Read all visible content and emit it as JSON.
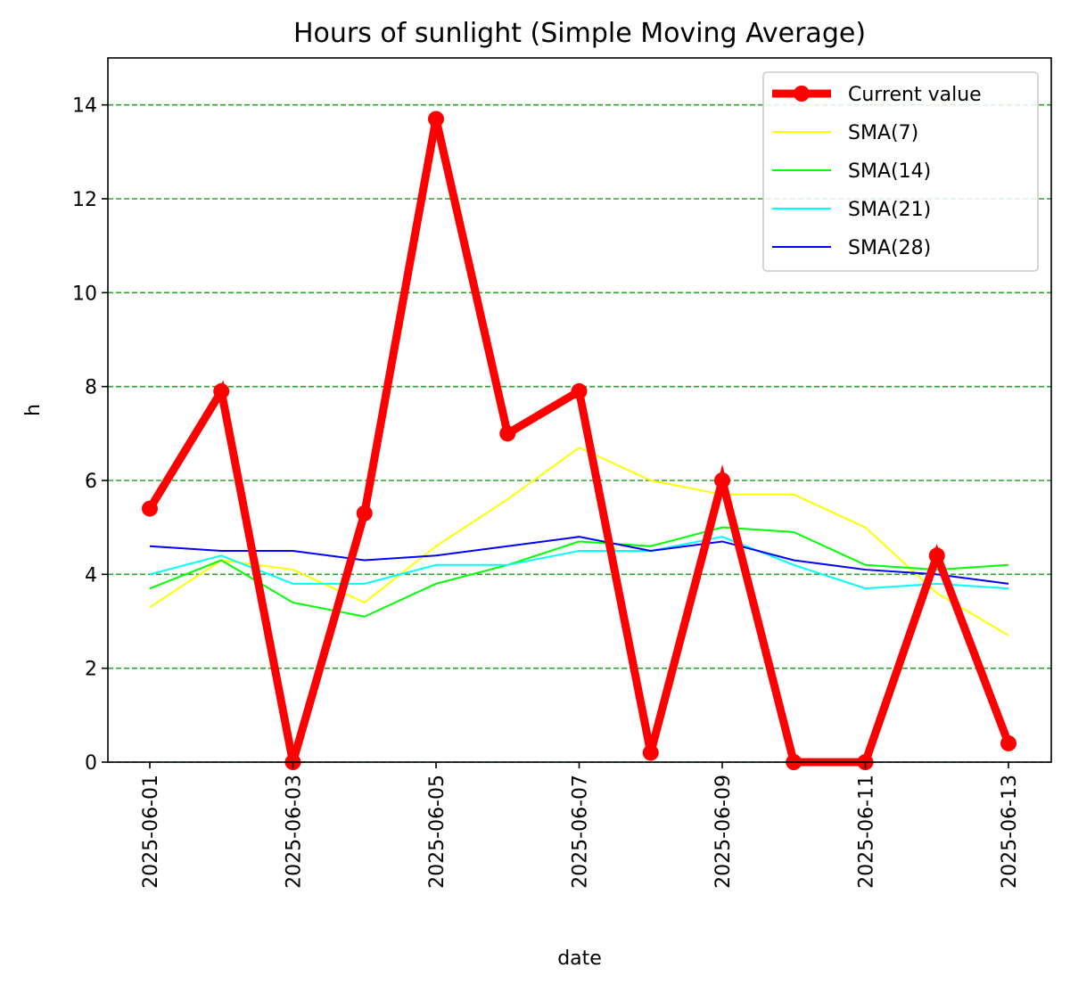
{
  "chart_data": {
    "type": "line",
    "title": "Hours of sunlight (Simple Moving Average)",
    "xlabel": "date",
    "ylabel": "h",
    "x": [
      "2025-06-01",
      "2025-06-02",
      "2025-06-03",
      "2025-06-04",
      "2025-06-05",
      "2025-06-06",
      "2025-06-07",
      "2025-06-08",
      "2025-06-09",
      "2025-06-10",
      "2025-06-11",
      "2025-06-12",
      "2025-06-13"
    ],
    "x_ticks": [
      "2025-06-01",
      "2025-06-03",
      "2025-06-05",
      "2025-06-07",
      "2025-06-09",
      "2025-06-11",
      "2025-06-13"
    ],
    "ylim": [
      0,
      15
    ],
    "y_ticks": [
      "0",
      "2",
      "4",
      "6",
      "8",
      "10",
      "12",
      "14"
    ],
    "grid": "horizontal, dashed",
    "legend_position": "top-right",
    "series": [
      {
        "name": "Current value",
        "color": "#ff0000",
        "markers": true,
        "values": [
          5.4,
          7.9,
          0.0,
          5.3,
          13.7,
          7.0,
          7.9,
          0.2,
          6.0,
          0.0,
          0.0,
          4.4,
          0.4
        ]
      },
      {
        "name": "SMA(7)",
        "color": "#ffff00",
        "markers": false,
        "values": [
          3.3,
          4.3,
          4.1,
          3.4,
          4.6,
          5.6,
          6.7,
          6.0,
          5.7,
          5.7,
          5.0,
          3.6,
          2.7
        ]
      },
      {
        "name": "SMA(14)",
        "color": "#00ff00",
        "markers": false,
        "values": [
          3.7,
          4.3,
          3.4,
          3.1,
          3.8,
          4.2,
          4.7,
          4.6,
          5.0,
          4.9,
          4.2,
          4.1,
          4.2
        ]
      },
      {
        "name": "SMA(21)",
        "color": "#00ffff",
        "markers": false,
        "values": [
          4.0,
          4.4,
          3.8,
          3.8,
          4.2,
          4.2,
          4.5,
          4.5,
          4.8,
          4.2,
          3.7,
          3.8,
          3.7
        ]
      },
      {
        "name": "SMA(28)",
        "color": "#0000ff",
        "markers": false,
        "values": [
          4.6,
          4.5,
          4.5,
          4.3,
          4.4,
          4.6,
          4.8,
          4.5,
          4.7,
          4.3,
          4.1,
          4.0,
          3.8
        ]
      }
    ],
    "colors": {
      "grid": "#2ca02c",
      "axes": "#000000",
      "legend_border": "#cccccc"
    }
  }
}
